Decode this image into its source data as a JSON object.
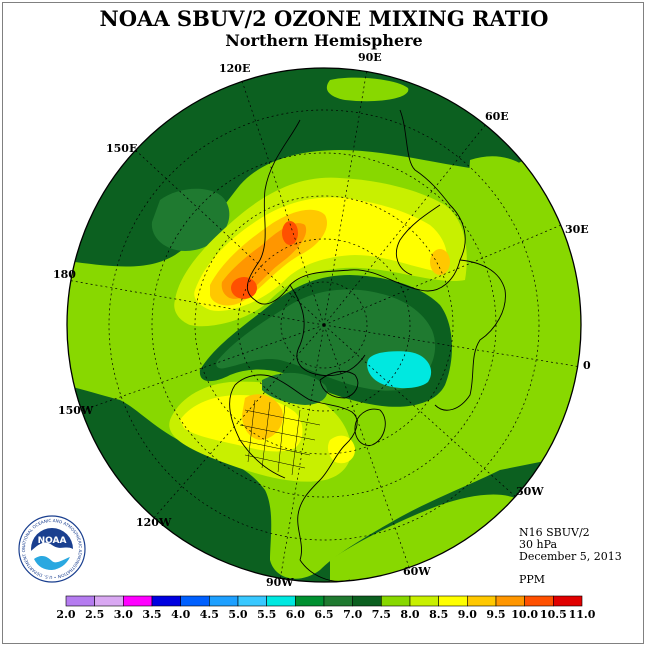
{
  "title": "NOAA SBUV/2 OZONE MIXING RATIO",
  "subtitle": "Northern Hemisphere",
  "longitude_labels": {
    "e120": "120E",
    "e90": "90E",
    "e60": "60E",
    "e150": "150E",
    "e30": "30E",
    "d180": "180",
    "zero": "0",
    "w150": "150W",
    "w30": "30W",
    "w120": "120W",
    "w60": "60W",
    "w90": "90W"
  },
  "info": {
    "instrument": "N16 SBUV/2",
    "level": "30 hPa",
    "date": "December 5, 2013",
    "units": "PPM"
  },
  "logo": {
    "text": "NOAA",
    "ring_text": "NATIONAL OCEANIC AND ATMOSPHERIC ADMINISTRATION • U.S. DEPARTMENT OF COMMERCE"
  },
  "colorbar": {
    "ticks": [
      "2.0",
      "2.5",
      "3.0",
      "3.5",
      "4.0",
      "4.5",
      "5.0",
      "5.5",
      "6.0",
      "6.5",
      "7.0",
      "7.5",
      "8.0",
      "8.5",
      "9.0",
      "9.5",
      "10.0",
      "10.5",
      "11.0"
    ],
    "colors": [
      "#b57cf0",
      "#d9a8f2",
      "#ff00ff",
      "#0000e0",
      "#0060ff",
      "#1ea0ff",
      "#38c8ff",
      "#00e8e0",
      "#009030",
      "#1f7a30",
      "#0c6020",
      "#88d800",
      "#c8f000",
      "#ffff00",
      "#ffc800",
      "#ff9600",
      "#ff5000",
      "#e00000",
      "#8c5a32"
    ]
  },
  "map_colors": {
    "dark": "#0c6020",
    "mid": "#1f7a30",
    "light": "#88d800",
    "yellowgreen": "#c8f000",
    "yellow": "#ffff00",
    "orange": "#ffc800",
    "dorange": "#ff9600",
    "red": "#ff5000",
    "cyan": "#00e8e0"
  }
}
